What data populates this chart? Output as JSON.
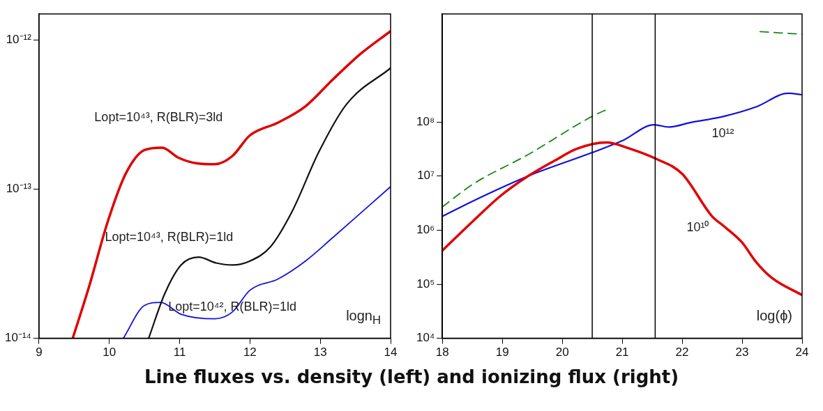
{
  "chart_data": [
    {
      "type": "line",
      "title": "Line fluxes vs. density (left) and ionizing flux (right)",
      "xlabel": "logn$_{H}$",
      "log": "y",
      "xlim": [
        9,
        14
      ],
      "xticks": [
        9,
        10,
        11,
        12,
        13,
        14
      ],
      "ylim": [
        1e-14,
        1.5e-12
      ],
      "yticks": [
        {
          "value": 1e-14,
          "label": "10⁻¹⁴"
        },
        {
          "value": 1e-13,
          "label": "10⁻¹³"
        },
        {
          "value": 1e-12,
          "label": "10⁻¹²"
        }
      ],
      "series": [
        {
          "color": "#e00000",
          "x": [
            9.48,
            9.71,
            9.98,
            10.23,
            10.5,
            10.75,
            10.98,
            11.25,
            11.5,
            11.75,
            12.0,
            12.4,
            12.79,
            13.17,
            13.56,
            14
          ],
          "values": [
            1e-14,
            2.2e-14,
            6.1e-14,
            1.26e-13,
            1.83e-13,
            1.9e-13,
            1.63e-13,
            1.49e-13,
            1.47e-13,
            1.67e-13,
            2.3e-13,
            2.8e-13,
            3.6e-13,
            5.4e-13,
            8e-13,
            1.15e-12
          ]
        },
        {
          "color": "#111111",
          "x": [
            10.56,
            10.79,
            11.02,
            11.27,
            11.52,
            11.75,
            12.0,
            12.29,
            12.6,
            12.98,
            13.37,
            14
          ],
          "values": [
            1e-14,
            2e-14,
            3.1e-14,
            3.5e-14,
            3.2e-14,
            3.1e-14,
            3.3e-14,
            4.1e-14,
            7.1e-14,
            1.78e-13,
            3.7e-13,
            6.5e-13
          ]
        },
        {
          "color": "#1010e0",
          "x": [
            10.2,
            10.5,
            10.73,
            11.02,
            11.5,
            11.75,
            12.0,
            12.4,
            12.79,
            13.17,
            14
          ],
          "values": [
            1e-14,
            1.66e-14,
            1.74e-14,
            1.45e-14,
            1.35e-14,
            1.5e-14,
            2.1e-14,
            2.5e-14,
            3.3e-14,
            4.7e-14,
            1.04e-13
          ]
        }
      ],
      "annotations": [
        "Lopt=10⁴³, R(BLR)=3ld",
        "Lopt=10⁴³, R(BLR)=1ld",
        "Lopt=10⁴², R(BLR)=1ld"
      ]
    },
    {
      "type": "line",
      "xlabel": "log(ϕ)",
      "log": "y",
      "xlim": [
        18,
        24
      ],
      "xticks": [
        18,
        19,
        20,
        21,
        22,
        23,
        24
      ],
      "ylim": [
        10000.0,
        10000000000.0
      ],
      "yticks": [
        {
          "value": 10000.0,
          "label": "10⁴"
        },
        {
          "value": 100000.0,
          "label": "10⁵"
        },
        {
          "value": 1000000.0,
          "label": "10⁶"
        },
        {
          "value": 10000000.0,
          "label": "10⁷"
        },
        {
          "value": 100000000.0,
          "label": "10⁸"
        }
      ],
      "series": [
        {
          "color": "#e00000",
          "x": [
            18,
            18.52,
            18.97,
            19.43,
            19.88,
            20.24,
            20.74,
            21.1,
            21.56,
            22.0,
            22.5,
            22.69,
            23.0,
            23.23,
            23.5,
            24
          ],
          "values": [
            420000.0,
            1500000.0,
            4300000.0,
            10000000.0,
            19500000.0,
            32000000.0,
            42000000.0,
            33000000.0,
            21000000.0,
            11000000.0,
            1800000.0,
            1200000.0,
            590000.0,
            260000.0,
            130000.0,
            63000.0
          ]
        },
        {
          "color": "#1010e0",
          "x": [
            18,
            18.52,
            19.43,
            20.49,
            21.0,
            21.53,
            21.78,
            22.14,
            22.69,
            23.23,
            23.77,
            24
          ],
          "values": [
            1800000.0,
            3500000.0,
            10000000.0,
            27000000.0,
            45000000.0,
            89000000.0,
            81000000.0,
            98000000.0,
            127000000.0,
            190000000.0,
            340000000.0,
            320000000.0
          ]
        },
        {
          "color": "#138a13",
          "line_style": "dashed",
          "x": [
            18,
            18.52,
            19.43,
            20.49,
            20.79,
            22,
            23.3,
            24
          ],
          "values": [
            2700000.0,
            7200000.0,
            25000000.0,
            126000000.0,
            180000000.0,
            null,
            4700000000.0,
            4200000000.0
          ]
        }
      ],
      "ref_lines": [
        {
          "axis": "x",
          "value": 20.5,
          "color": "#000000"
        },
        {
          "axis": "x",
          "value": 21.55,
          "color": "#000000"
        }
      ],
      "annotations": [
        "10¹²",
        "10¹⁰"
      ]
    }
  ]
}
